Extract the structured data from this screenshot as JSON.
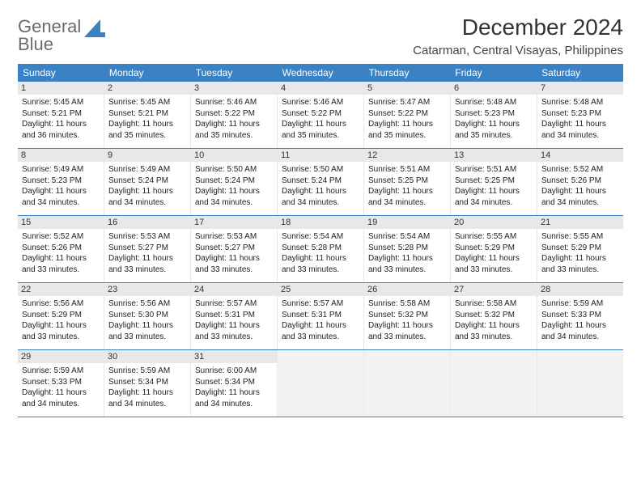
{
  "logo": {
    "line1": "General",
    "line2": "Blue"
  },
  "title": "December 2024",
  "location": "Catarman, Central Visayas, Philippines",
  "colors": {
    "header_bar": "#3b82c4",
    "weekday_text": "#ffffff",
    "daynum_bg": "#e8e8e8",
    "row_border": "#3b82c4",
    "logo_gray": "#6b6b6b",
    "logo_blue": "#3b82c4"
  },
  "weekdays": [
    "Sunday",
    "Monday",
    "Tuesday",
    "Wednesday",
    "Thursday",
    "Friday",
    "Saturday"
  ],
  "days": [
    {
      "n": "1",
      "sr": "5:45 AM",
      "ss": "5:21 PM",
      "dl": "11 hours and 36 minutes."
    },
    {
      "n": "2",
      "sr": "5:45 AM",
      "ss": "5:21 PM",
      "dl": "11 hours and 35 minutes."
    },
    {
      "n": "3",
      "sr": "5:46 AM",
      "ss": "5:22 PM",
      "dl": "11 hours and 35 minutes."
    },
    {
      "n": "4",
      "sr": "5:46 AM",
      "ss": "5:22 PM",
      "dl": "11 hours and 35 minutes."
    },
    {
      "n": "5",
      "sr": "5:47 AM",
      "ss": "5:22 PM",
      "dl": "11 hours and 35 minutes."
    },
    {
      "n": "6",
      "sr": "5:48 AM",
      "ss": "5:23 PM",
      "dl": "11 hours and 35 minutes."
    },
    {
      "n": "7",
      "sr": "5:48 AM",
      "ss": "5:23 PM",
      "dl": "11 hours and 34 minutes."
    },
    {
      "n": "8",
      "sr": "5:49 AM",
      "ss": "5:23 PM",
      "dl": "11 hours and 34 minutes."
    },
    {
      "n": "9",
      "sr": "5:49 AM",
      "ss": "5:24 PM",
      "dl": "11 hours and 34 minutes."
    },
    {
      "n": "10",
      "sr": "5:50 AM",
      "ss": "5:24 PM",
      "dl": "11 hours and 34 minutes."
    },
    {
      "n": "11",
      "sr": "5:50 AM",
      "ss": "5:24 PM",
      "dl": "11 hours and 34 minutes."
    },
    {
      "n": "12",
      "sr": "5:51 AM",
      "ss": "5:25 PM",
      "dl": "11 hours and 34 minutes."
    },
    {
      "n": "13",
      "sr": "5:51 AM",
      "ss": "5:25 PM",
      "dl": "11 hours and 34 minutes."
    },
    {
      "n": "14",
      "sr": "5:52 AM",
      "ss": "5:26 PM",
      "dl": "11 hours and 34 minutes."
    },
    {
      "n": "15",
      "sr": "5:52 AM",
      "ss": "5:26 PM",
      "dl": "11 hours and 33 minutes."
    },
    {
      "n": "16",
      "sr": "5:53 AM",
      "ss": "5:27 PM",
      "dl": "11 hours and 33 minutes."
    },
    {
      "n": "17",
      "sr": "5:53 AM",
      "ss": "5:27 PM",
      "dl": "11 hours and 33 minutes."
    },
    {
      "n": "18",
      "sr": "5:54 AM",
      "ss": "5:28 PM",
      "dl": "11 hours and 33 minutes."
    },
    {
      "n": "19",
      "sr": "5:54 AM",
      "ss": "5:28 PM",
      "dl": "11 hours and 33 minutes."
    },
    {
      "n": "20",
      "sr": "5:55 AM",
      "ss": "5:29 PM",
      "dl": "11 hours and 33 minutes."
    },
    {
      "n": "21",
      "sr": "5:55 AM",
      "ss": "5:29 PM",
      "dl": "11 hours and 33 minutes."
    },
    {
      "n": "22",
      "sr": "5:56 AM",
      "ss": "5:29 PM",
      "dl": "11 hours and 33 minutes."
    },
    {
      "n": "23",
      "sr": "5:56 AM",
      "ss": "5:30 PM",
      "dl": "11 hours and 33 minutes."
    },
    {
      "n": "24",
      "sr": "5:57 AM",
      "ss": "5:31 PM",
      "dl": "11 hours and 33 minutes."
    },
    {
      "n": "25",
      "sr": "5:57 AM",
      "ss": "5:31 PM",
      "dl": "11 hours and 33 minutes."
    },
    {
      "n": "26",
      "sr": "5:58 AM",
      "ss": "5:32 PM",
      "dl": "11 hours and 33 minutes."
    },
    {
      "n": "27",
      "sr": "5:58 AM",
      "ss": "5:32 PM",
      "dl": "11 hours and 33 minutes."
    },
    {
      "n": "28",
      "sr": "5:59 AM",
      "ss": "5:33 PM",
      "dl": "11 hours and 34 minutes."
    },
    {
      "n": "29",
      "sr": "5:59 AM",
      "ss": "5:33 PM",
      "dl": "11 hours and 34 minutes."
    },
    {
      "n": "30",
      "sr": "5:59 AM",
      "ss": "5:34 PM",
      "dl": "11 hours and 34 minutes."
    },
    {
      "n": "31",
      "sr": "6:00 AM",
      "ss": "5:34 PM",
      "dl": "11 hours and 34 minutes."
    }
  ],
  "labels": {
    "sunrise": "Sunrise:",
    "sunset": "Sunset:",
    "daylight": "Daylight:"
  },
  "layout": {
    "columns": 7,
    "rows": 5,
    "start_weekday": 0,
    "trailing_empty": 4
  }
}
